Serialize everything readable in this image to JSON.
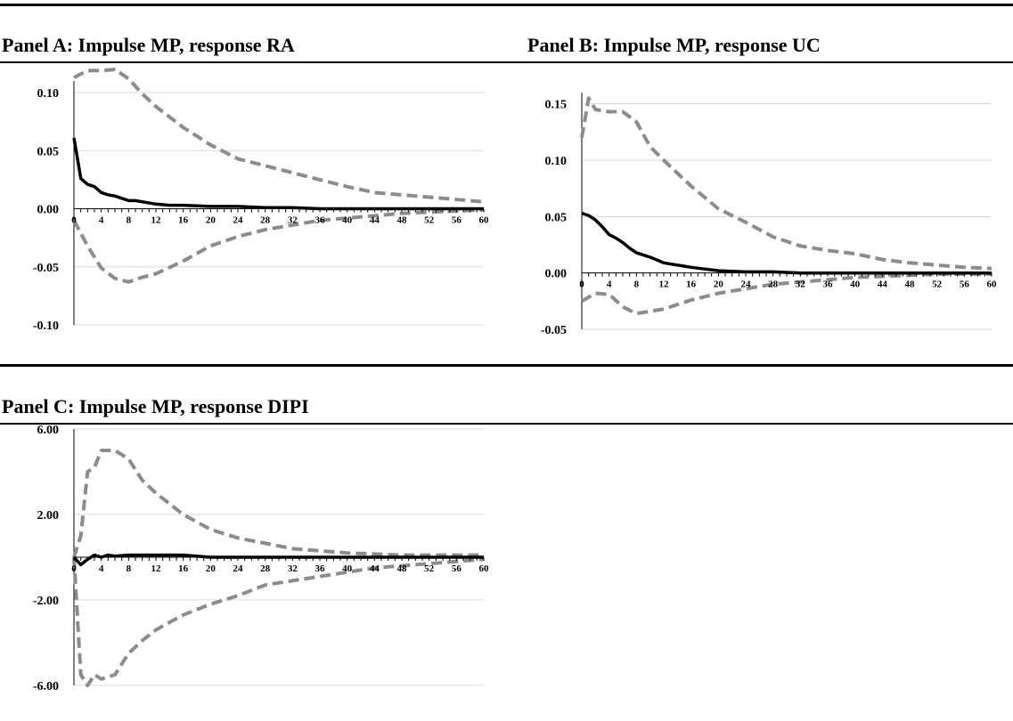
{
  "chart_data": [
    {
      "type": "line",
      "title": "Panel A: Impulse MP, response RA",
      "xlabel": "",
      "ylabel": "",
      "ylim": [
        -0.1,
        0.12
      ],
      "xlim": [
        0,
        60
      ],
      "y_ticks": [
        "0.10",
        "0.05",
        "0.00",
        "-0.05",
        "-0.10"
      ],
      "y_tick_values": [
        0.1,
        0.05,
        0.0,
        -0.05,
        -0.1
      ],
      "x_tick_values": [
        0,
        4,
        8,
        12,
        16,
        20,
        24,
        28,
        32,
        36,
        40,
        44,
        48,
        52,
        56,
        60
      ],
      "grid": true,
      "series": [
        {
          "style": "solid",
          "color": "#000000",
          "x": [
            0,
            1,
            2,
            3,
            4,
            5,
            6,
            7,
            8,
            9,
            10,
            12,
            14,
            16,
            20,
            24,
            28,
            32,
            36,
            40,
            50,
            60
          ],
          "y": [
            0.061,
            0.026,
            0.021,
            0.019,
            0.014,
            0.012,
            0.011,
            0.009,
            0.007,
            0.007,
            0.006,
            0.004,
            0.003,
            0.003,
            0.002,
            0.002,
            0.001,
            0.001,
            0.0,
            0.0,
            0.0,
            0.0
          ]
        },
        {
          "style": "dashed",
          "color": "#8c8c8c",
          "x": [
            0,
            2,
            4,
            6,
            8,
            10,
            12,
            16,
            20,
            24,
            28,
            32,
            36,
            40,
            44,
            48,
            52,
            56,
            60
          ],
          "y": [
            0.113,
            0.119,
            0.119,
            0.12,
            0.112,
            0.099,
            0.088,
            0.07,
            0.055,
            0.043,
            0.037,
            0.031,
            0.025,
            0.019,
            0.014,
            0.012,
            0.01,
            0.008,
            0.006
          ]
        },
        {
          "style": "dashed",
          "color": "#8c8c8c",
          "x": [
            0,
            2,
            4,
            6,
            8,
            10,
            12,
            16,
            20,
            24,
            28,
            32,
            36,
            40,
            44,
            48,
            52,
            56,
            60
          ],
          "y": [
            -0.01,
            -0.032,
            -0.051,
            -0.06,
            -0.063,
            -0.059,
            -0.056,
            -0.045,
            -0.032,
            -0.024,
            -0.018,
            -0.014,
            -0.01,
            -0.008,
            -0.006,
            -0.004,
            -0.003,
            -0.002,
            -0.001
          ]
        }
      ]
    },
    {
      "type": "line",
      "title": "Panel B: Impulse MP, response UC",
      "xlabel": "",
      "ylabel": "",
      "ylim": [
        -0.05,
        0.17
      ],
      "xlim": [
        0,
        60
      ],
      "y_ticks": [
        "0.15",
        "0.10",
        "0.05",
        "0.00",
        "-0.05"
      ],
      "y_tick_values": [
        0.15,
        0.1,
        0.05,
        0.0,
        -0.05
      ],
      "x_tick_values": [
        0,
        4,
        8,
        12,
        16,
        20,
        24,
        28,
        32,
        36,
        40,
        44,
        48,
        52,
        56,
        60
      ],
      "grid": true,
      "series": [
        {
          "style": "solid",
          "color": "#000000",
          "x": [
            0,
            1,
            2,
            3,
            4,
            5,
            6,
            7,
            8,
            10,
            12,
            14,
            16,
            20,
            24,
            28,
            32,
            36,
            40,
            50,
            60
          ],
          "y": [
            0.053,
            0.051,
            0.047,
            0.041,
            0.034,
            0.031,
            0.027,
            0.022,
            0.018,
            0.014,
            0.009,
            0.007,
            0.005,
            0.002,
            0.001,
            0.001,
            0.0,
            0.0,
            0.0,
            0.0,
            0.0
          ]
        },
        {
          "style": "dashed",
          "color": "#8c8c8c",
          "x": [
            0,
            1,
            2,
            4,
            6,
            8,
            10,
            12,
            16,
            20,
            24,
            28,
            32,
            36,
            40,
            44,
            48,
            52,
            56,
            60
          ],
          "y": [
            0.12,
            0.155,
            0.145,
            0.143,
            0.143,
            0.134,
            0.112,
            0.1,
            0.077,
            0.057,
            0.045,
            0.032,
            0.024,
            0.02,
            0.017,
            0.012,
            0.009,
            0.007,
            0.005,
            0.004
          ]
        },
        {
          "style": "dashed",
          "color": "#8c8c8c",
          "x": [
            0,
            2,
            4,
            6,
            8,
            10,
            12,
            16,
            20,
            24,
            28,
            32,
            36,
            40,
            44,
            48,
            52,
            56,
            60
          ],
          "y": [
            -0.025,
            -0.018,
            -0.019,
            -0.03,
            -0.036,
            -0.034,
            -0.032,
            -0.024,
            -0.018,
            -0.014,
            -0.01,
            -0.008,
            -0.006,
            -0.004,
            -0.003,
            -0.002,
            -0.001,
            -0.001,
            -0.001
          ]
        }
      ]
    },
    {
      "type": "line",
      "title": "Panel C: Impulse MP, response DIPI",
      "xlabel": "",
      "ylabel": "",
      "ylim": [
        -6.0,
        6.0
      ],
      "xlim": [
        0,
        60
      ],
      "y_ticks": [
        "6.00",
        "2.00",
        "-2.00",
        "-6.00"
      ],
      "y_tick_values": [
        6.0,
        2.0,
        -2.0,
        -6.0
      ],
      "x_tick_values": [
        0,
        4,
        8,
        12,
        16,
        20,
        24,
        28,
        32,
        36,
        40,
        44,
        48,
        52,
        56,
        60
      ],
      "grid": true,
      "series": [
        {
          "style": "solid",
          "color": "#000000",
          "x": [
            0,
            1,
            2,
            3,
            4,
            5,
            6,
            8,
            10,
            12,
            16,
            20,
            30,
            40,
            50,
            60
          ],
          "y": [
            0.0,
            -0.35,
            -0.1,
            0.1,
            0.0,
            0.1,
            0.05,
            0.1,
            0.1,
            0.1,
            0.1,
            0.0,
            0.0,
            0.0,
            0.0,
            0.0
          ]
        },
        {
          "style": "dashed",
          "color": "#8c8c8c",
          "x": [
            0,
            1,
            2,
            3,
            4,
            6,
            8,
            10,
            12,
            16,
            20,
            24,
            28,
            32,
            36,
            40,
            44,
            48,
            52,
            56,
            60
          ],
          "y": [
            0.0,
            1.0,
            4.0,
            4.2,
            5.0,
            5.0,
            4.6,
            3.6,
            3.0,
            2.0,
            1.3,
            0.9,
            0.65,
            0.4,
            0.3,
            0.2,
            0.15,
            0.1,
            0.1,
            0.1,
            0.1
          ]
        },
        {
          "style": "dashed",
          "color": "#8c8c8c",
          "x": [
            0,
            1,
            2,
            3,
            4,
            6,
            8,
            10,
            12,
            16,
            20,
            24,
            28,
            32,
            36,
            40,
            44,
            48,
            52,
            56,
            60
          ],
          "y": [
            0.0,
            -5.5,
            -6.0,
            -5.5,
            -5.7,
            -5.5,
            -4.5,
            -3.9,
            -3.4,
            -2.7,
            -2.2,
            -1.8,
            -1.3,
            -1.1,
            -0.9,
            -0.7,
            -0.5,
            -0.4,
            -0.3,
            -0.2,
            -0.1
          ]
        }
      ]
    }
  ]
}
